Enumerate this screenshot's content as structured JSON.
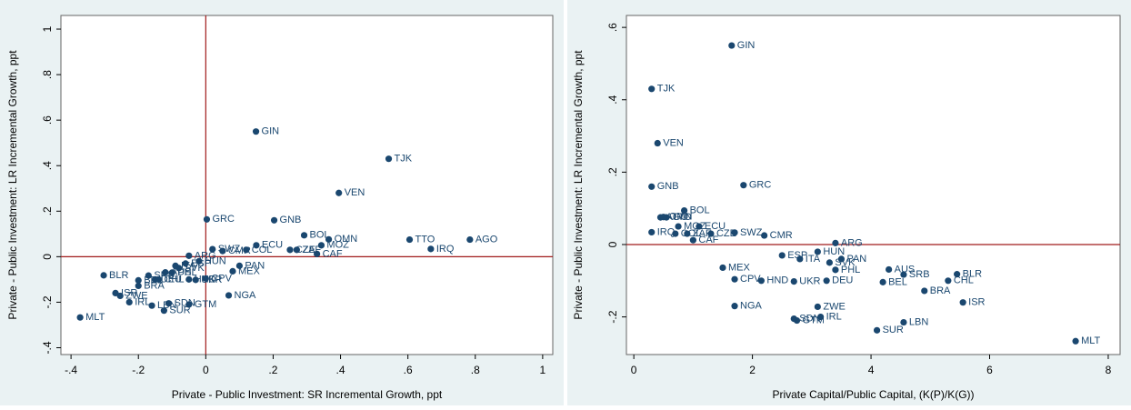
{
  "chart_data": [
    {
      "type": "scatter",
      "xlabel": "Private - Public Investment: SR Incremental Growth, ppt",
      "ylabel": "Private - Public Investment: LR Incremental Growth, ppt",
      "color": "#1a476f",
      "line_color": "#a01a1a",
      "xline": 0,
      "yline": 0,
      "xlim": [
        -0.43,
        1.03
      ],
      "ylim": [
        -0.43,
        1.06
      ],
      "xticks": [
        {
          "value": -0.4,
          "label": "-.4"
        },
        {
          "value": -0.2,
          "label": "-.2"
        },
        0,
        {
          "value": 0.2,
          "label": ".2"
        },
        {
          "value": 0.4,
          "label": ".4"
        },
        {
          "value": 0.6,
          "label": ".6"
        },
        {
          "value": 0.8,
          "label": ".8"
        },
        1
      ],
      "yticks": [
        {
          "value": -0.4,
          "label": "-.4"
        },
        {
          "value": -0.2,
          "label": "-.2"
        },
        0,
        {
          "value": 0.2,
          "label": ".2"
        },
        {
          "value": 0.4,
          "label": ".4"
        },
        {
          "value": 0.6,
          "label": ".6"
        },
        {
          "value": 0.8,
          "label": ".8"
        },
        1
      ],
      "labels": [
        "GIN",
        "TJK",
        "VEN",
        "GNB",
        "GRC",
        "TTO",
        "AGO",
        "IRQ",
        "OMN",
        "BOL",
        "MOZ",
        "NGA",
        "MLT",
        "SUR",
        "GTM",
        "SDN",
        "BRA",
        "BLR",
        "ISR",
        "ZWE",
        "IRL",
        "LBN",
        "CPV",
        "HND",
        "UKR",
        "MEX",
        "ECU",
        "CAF",
        "CZE",
        "SWZ",
        "CMR",
        "ARG",
        "HUN",
        "SVK",
        "PAN",
        "PHL",
        "DEU",
        "AUS",
        "SRB",
        "BEL",
        "CHL",
        "COL",
        "ZAF",
        "ESP",
        "ITA"
      ],
      "x": [
        0.149,
        0.543,
        0.395,
        0.203,
        0.003,
        0.605,
        0.784,
        0.668,
        0.365,
        0.292,
        0.343,
        0.068,
        -0.373,
        -0.124,
        -0.05,
        -0.11,
        -0.2,
        -0.303,
        -0.268,
        -0.254,
        -0.227,
        -0.16,
        0.0,
        -0.05,
        -0.03,
        0.08,
        0.15,
        0.33,
        0.25,
        0.02,
        0.05,
        -0.05,
        -0.02,
        -0.08,
        0.1,
        -0.1,
        -0.15,
        -0.12,
        -0.17,
        -0.2,
        -0.14,
        0.12,
        0.27,
        -0.06,
        -0.09
      ],
      "values": [
        0.55,
        0.43,
        0.28,
        0.16,
        0.164,
        0.075,
        0.075,
        0.034,
        0.076,
        0.094,
        0.05,
        -0.17,
        -0.267,
        -0.237,
        -0.21,
        -0.205,
        -0.128,
        -0.082,
        -0.16,
        -0.172,
        -0.2,
        -0.215,
        -0.096,
        -0.1,
        -0.102,
        -0.064,
        0.05,
        0.012,
        0.03,
        0.033,
        0.025,
        0.004,
        -0.02,
        -0.05,
        -0.04,
        -0.07,
        -0.1,
        -0.069,
        -0.083,
        -0.104,
        -0.1,
        0.03,
        0.03,
        -0.03,
        -0.04
      ]
    },
    {
      "type": "scatter",
      "xlabel": "Private Capital/Public Capital, (K(P)/K(G))",
      "ylabel": "Private - Public Investment: LR Incremental Growth, ppt",
      "color": "#1a476f",
      "line_color": "#a01a1a",
      "yline": 0,
      "xlim": [
        -0.125,
        8.2
      ],
      "ylim": [
        -0.304,
        0.633
      ],
      "xticks": [
        0,
        2,
        4,
        6,
        8
      ],
      "yticks": [
        {
          "value": -0.2,
          "label": "-.2"
        },
        0,
        {
          "value": 0.2,
          "label": ".2"
        },
        {
          "value": 0.4,
          "label": ".4"
        },
        {
          "value": 0.6,
          "label": ".6"
        }
      ],
      "labels": [
        "GIN",
        "TJK",
        "VEN",
        "GNB",
        "GRC",
        "TTO",
        "AGO",
        "IRQ",
        "OMN",
        "BOL",
        "MOZ",
        "NGA",
        "MLT",
        "SUR",
        "GTM",
        "SDN",
        "BRA",
        "BLR",
        "ISR",
        "ZWE",
        "IRL",
        "LBN",
        "CPV",
        "HND",
        "UKR",
        "MEX",
        "ECU",
        "CAF",
        "CZE",
        "SWZ",
        "CMR",
        "ARG",
        "HUN",
        "SVK",
        "PAN",
        "PHL",
        "DEU",
        "AUS",
        "SRB",
        "BEL",
        "CHL",
        "COL",
        "ZAF",
        "ESP",
        "ITA"
      ],
      "x": [
        1.65,
        0.3,
        0.4,
        0.3,
        1.85,
        0.55,
        0.45,
        0.3,
        0.5,
        0.85,
        0.75,
        1.7,
        7.45,
        4.1,
        2.75,
        2.7,
        4.9,
        5.45,
        5.55,
        3.1,
        3.15,
        4.55,
        1.7,
        2.15,
        2.7,
        1.5,
        1.1,
        1.0,
        1.3,
        1.7,
        2.2,
        3.4,
        3.1,
        3.3,
        3.5,
        3.4,
        3.25,
        4.3,
        4.55,
        4.2,
        5.3,
        0.7,
        0.9,
        2.5,
        2.8
      ],
      "values": [
        0.55,
        0.43,
        0.28,
        0.16,
        0.164,
        0.075,
        0.075,
        0.034,
        0.076,
        0.094,
        0.05,
        -0.17,
        -0.267,
        -0.237,
        -0.21,
        -0.205,
        -0.128,
        -0.082,
        -0.16,
        -0.172,
        -0.2,
        -0.215,
        -0.096,
        -0.1,
        -0.102,
        -0.064,
        0.05,
        0.012,
        0.03,
        0.033,
        0.025,
        0.004,
        -0.02,
        -0.05,
        -0.04,
        -0.07,
        -0.1,
        -0.069,
        -0.083,
        -0.104,
        -0.1,
        0.03,
        0.03,
        -0.03,
        -0.04
      ]
    }
  ]
}
